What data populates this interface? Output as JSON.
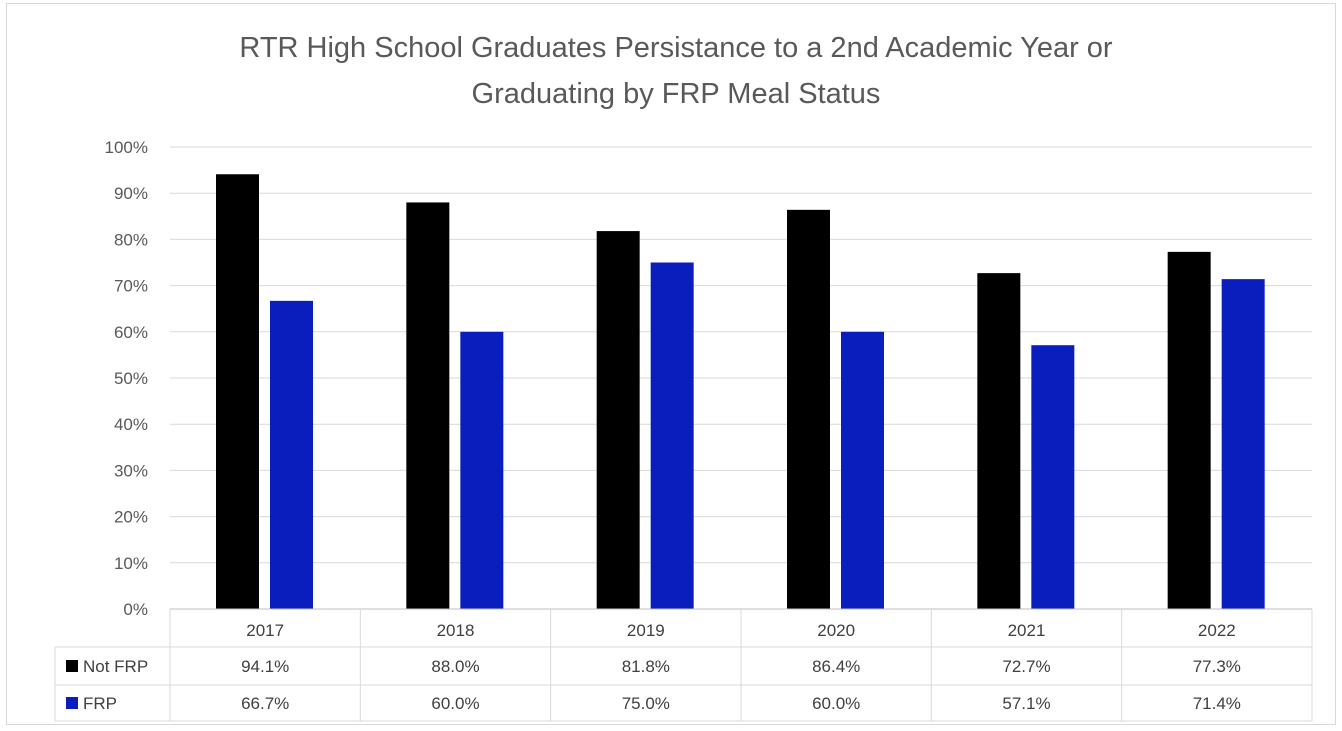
{
  "chart_data": {
    "type": "bar",
    "title": "RTR High School Graduates Persistance to a 2nd Academic Year or Graduating by FRP Meal Status",
    "title_lines": [
      "RTR High School Graduates Persistance to a 2nd Academic Year or",
      "Graduating by FRP Meal Status"
    ],
    "categories": [
      "2017",
      "2018",
      "2019",
      "2020",
      "2021",
      "2022"
    ],
    "series": [
      {
        "name": "Not FRP",
        "color": "#000000",
        "values": [
          94.1,
          88.0,
          81.8,
          86.4,
          72.7,
          77.3
        ],
        "labels": [
          "94.1%",
          "88.0%",
          "81.8%",
          "86.4%",
          "72.7%",
          "77.3%"
        ]
      },
      {
        "name": "FRP",
        "color": "#0a1ebe",
        "values": [
          66.7,
          60.0,
          75.0,
          60.0,
          57.1,
          71.4
        ],
        "labels": [
          "66.7%",
          "60.0%",
          "75.0%",
          "60.0%",
          "57.1%",
          "71.4%"
        ]
      }
    ],
    "y_ticks": [
      "0%",
      "10%",
      "20%",
      "30%",
      "40%",
      "50%",
      "60%",
      "70%",
      "80%",
      "90%",
      "100%"
    ],
    "ylim": [
      0,
      100
    ],
    "grid": true,
    "legend": "data-table",
    "data_table": true
  }
}
